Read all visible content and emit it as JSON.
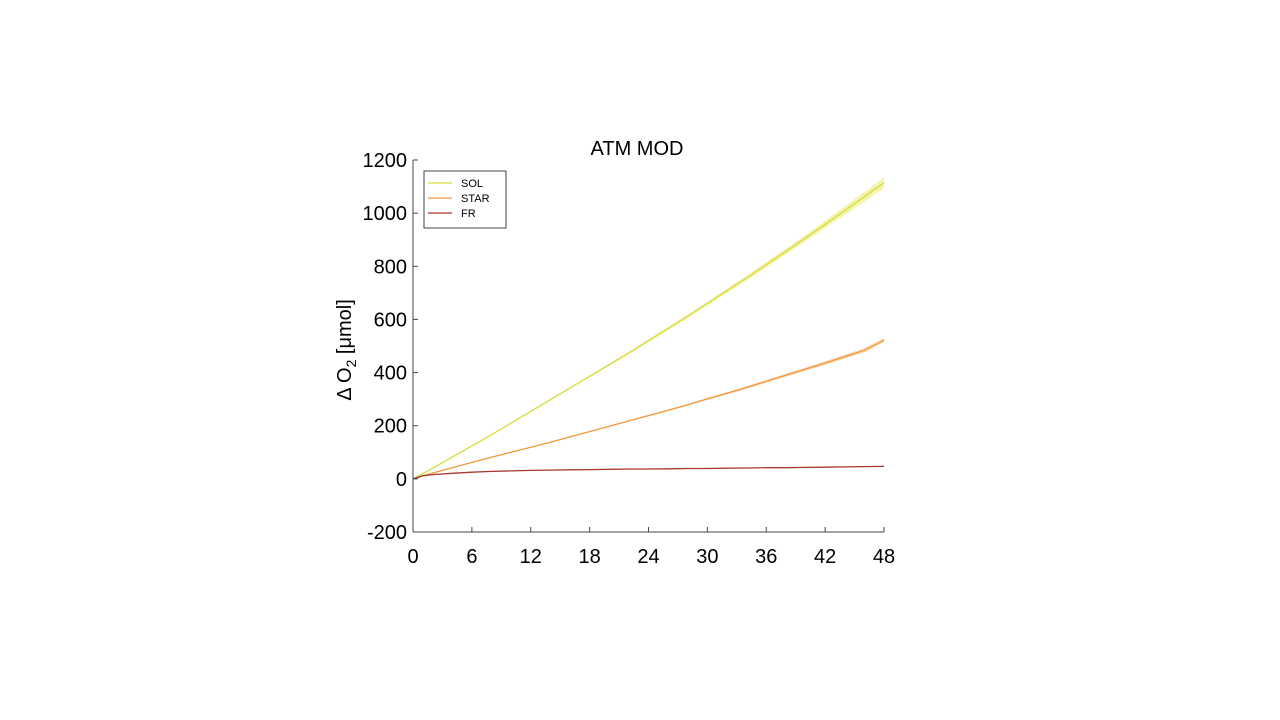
{
  "chart_data": {
    "type": "line",
    "title": "ATM MOD",
    "ylabel": {
      "prefix": "Δ O",
      "subscript": "2",
      "unit": " [μmol]"
    },
    "xlabel": "",
    "xlim": [
      0,
      48
    ],
    "ylim": [
      -200,
      1200
    ],
    "xticks": [
      0,
      6,
      12,
      18,
      24,
      30,
      36,
      42,
      48
    ],
    "yticks": [
      -200,
      0,
      200,
      400,
      600,
      800,
      1000,
      1200
    ],
    "legend_position": "top-left",
    "grid": false,
    "series": [
      {
        "name": "SOL",
        "color": "#d9dc3c",
        "band_color": "#eef08a",
        "x": [
          0,
          2,
          4,
          6,
          8,
          10,
          12,
          14,
          16,
          18,
          20,
          22,
          24,
          26,
          28,
          30,
          32,
          34,
          36,
          38,
          40,
          42,
          44,
          46,
          48
        ],
        "y": [
          0,
          40,
          82,
          124,
          166,
          210,
          254,
          298,
          342,
          386,
          430,
          474,
          520,
          566,
          612,
          660,
          708,
          756,
          806,
          856,
          906,
          958,
          1010,
          1062,
          1115
        ],
        "band": [
          0,
          1,
          2,
          2,
          2,
          2,
          2,
          3,
          3,
          3,
          4,
          4,
          5,
          6,
          6,
          7,
          8,
          9,
          10,
          11,
          12,
          14,
          16,
          18,
          20
        ]
      },
      {
        "name": "STAR",
        "color": "#f09a3c",
        "band_color": "#f9c79a",
        "x": [
          0,
          2,
          4,
          6,
          8,
          10,
          12,
          14,
          16,
          18,
          20,
          22,
          24,
          26,
          28,
          30,
          32,
          34,
          36,
          38,
          40,
          42,
          44,
          46,
          48
        ],
        "y": [
          0,
          22,
          42,
          62,
          81,
          100,
          119,
          138,
          158,
          178,
          198,
          218,
          238,
          258,
          279,
          301,
          322,
          344,
          367,
          390,
          413,
          436,
          460,
          484,
          522
        ],
        "band": [
          0,
          1,
          1,
          1,
          1,
          1,
          1,
          1,
          2,
          2,
          2,
          2,
          3,
          3,
          3,
          4,
          4,
          5,
          5,
          6,
          6,
          7,
          7,
          8,
          8
        ]
      },
      {
        "name": "FR",
        "color": "#a83a2c",
        "band_color": "#d99a8e",
        "x": [
          0,
          1,
          2,
          4,
          6,
          8,
          10,
          12,
          14,
          16,
          18,
          20,
          22,
          24,
          26,
          28,
          30,
          32,
          34,
          36,
          38,
          40,
          42,
          44,
          46,
          48
        ],
        "y": [
          0,
          12,
          16,
          21,
          25,
          28,
          30,
          32,
          33,
          34,
          35,
          36,
          37,
          37,
          38,
          39,
          39,
          40,
          41,
          42,
          42,
          43,
          44,
          45,
          46,
          47
        ],
        "band": [
          0,
          1,
          1,
          1,
          1,
          1,
          1,
          1,
          1,
          1,
          1,
          1,
          1,
          1,
          1,
          1,
          1,
          1,
          1,
          1,
          1,
          1,
          1,
          1,
          1,
          1
        ]
      }
    ]
  }
}
